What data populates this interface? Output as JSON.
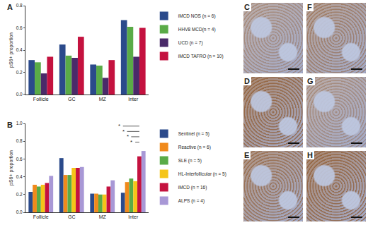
{
  "chart_data": [
    {
      "panel": "A",
      "type": "bar",
      "ylabel": "pS6+ proportion",
      "categories": [
        "Follicle",
        "GC",
        "MZ",
        "Inter"
      ],
      "series": [
        {
          "name": "iMCD NOS (n = 6)",
          "color": "#2b4a8b",
          "values": [
            0.31,
            0.45,
            0.27,
            0.67
          ]
        },
        {
          "name": "HHV8 MCD(n = 4)",
          "color": "#5aab47",
          "values": [
            0.29,
            0.35,
            0.26,
            0.61
          ]
        },
        {
          "name": "UCD (n = 7)",
          "color": "#4a2a69",
          "values": [
            0.19,
            0.33,
            0.15,
            0.34
          ]
        },
        {
          "name": "iMCD TAFRO (n = 10)",
          "color": "#c4123f",
          "values": [
            0.34,
            0.52,
            0.31,
            0.6
          ]
        }
      ],
      "ylim": [
        0,
        0.8
      ],
      "yticks": [
        {
          "value": 0,
          "label": "0.0"
        },
        {
          "value": 0.2,
          "label": "0.2"
        },
        {
          "value": 0.4,
          "label": "0.4"
        },
        {
          "value": 0.6,
          "label": "0.6"
        },
        {
          "value": 0.8,
          "label": "0.8"
        }
      ],
      "grid": false,
      "legend": "right"
    },
    {
      "panel": "B",
      "type": "bar",
      "ylabel": "pS6+ proportion",
      "categories": [
        "Follicle",
        "GC",
        "MZ",
        "Inter"
      ],
      "series": [
        {
          "name": "Sentinel (n = 5)",
          "color": "#2b4a8b",
          "values": [
            0.23,
            0.61,
            0.21,
            0.22
          ]
        },
        {
          "name": "Reactive (n = 6)",
          "color": "#f08a1c",
          "values": [
            0.31,
            0.42,
            0.21,
            0.34
          ]
        },
        {
          "name": "SLE (n = 5)",
          "color": "#5aab47",
          "values": [
            0.29,
            0.42,
            0.2,
            0.38
          ]
        },
        {
          "name": "HL-Interfollicular (n = 5)",
          "color": "#f5c518",
          "values": [
            0.31,
            0.5,
            0.2,
            0.35
          ]
        },
        {
          "name": "iMCD (n = 16)",
          "color": "#c4123f",
          "values": [
            0.33,
            0.5,
            0.29,
            0.63
          ]
        },
        {
          "name": "ALPS (n = 4)",
          "color": "#a898d6",
          "values": [
            0.41,
            0.51,
            0.36,
            0.69
          ]
        }
      ],
      "significance": [
        {
          "text": "*",
          "category": "Inter",
          "between": [
            "Sentinel (n = 5)",
            "iMCD (n = 16)"
          ]
        },
        {
          "text": "*",
          "category": "Inter",
          "between": [
            "Reactive (n = 6)",
            "iMCD (n = 16)"
          ]
        },
        {
          "text": "*",
          "category": "Inter",
          "between": [
            "SLE (n = 5)",
            "iMCD (n = 16)"
          ]
        },
        {
          "text": "*",
          "category": "Inter",
          "between": [
            "HL-Interfollicular (n = 5)",
            "iMCD (n = 16)"
          ]
        }
      ],
      "ylim": [
        0,
        1.0
      ],
      "yticks": [
        {
          "value": 0,
          "label": "0.0"
        },
        {
          "value": 0.2,
          "label": "0.2"
        },
        {
          "value": 0.4,
          "label": "0.4"
        },
        {
          "value": 0.6,
          "label": "0.6"
        },
        {
          "value": 0.8,
          "label": "0.8"
        },
        {
          "value": 1.0,
          "label": "1.0"
        }
      ],
      "grid": false,
      "legend": "right"
    }
  ],
  "image_panels": [
    {
      "label": "C"
    },
    {
      "label": "D"
    },
    {
      "label": "E"
    },
    {
      "label": "F"
    },
    {
      "label": "G"
    },
    {
      "label": "H"
    }
  ]
}
